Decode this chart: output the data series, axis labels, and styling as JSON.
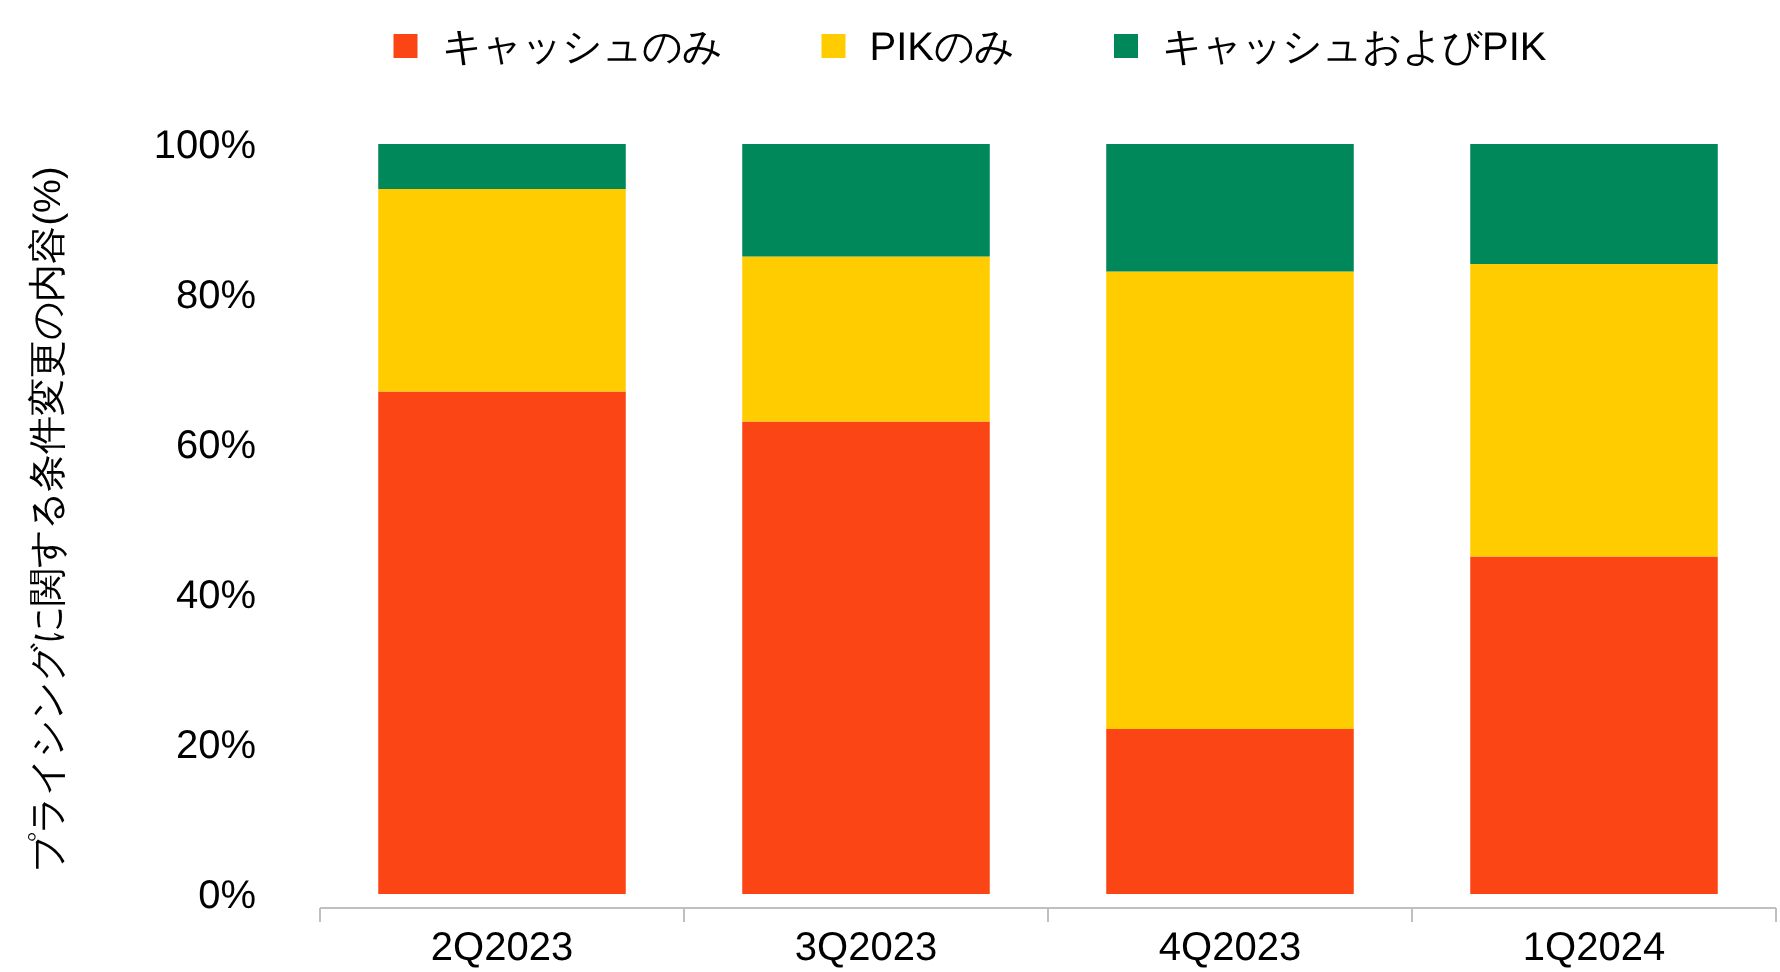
{
  "chart_data": {
    "type": "bar",
    "stacked": true,
    "ylabel": "プライシングに関する条件変更の内容(%)",
    "categories": [
      "2Q2023",
      "3Q2023",
      "4Q2023",
      "1Q2024"
    ],
    "series": [
      {
        "name": "キャッシュのみ",
        "color": "#fc4515",
        "values": [
          67,
          63,
          22,
          45
        ]
      },
      {
        "name": "PIKのみ",
        "color": "#ffcc00",
        "values": [
          27,
          22,
          61,
          39
        ]
      },
      {
        "name": "キャッシュおよびPIK",
        "color": "#00875a",
        "values": [
          6,
          15,
          17,
          16
        ]
      }
    ],
    "ylim": [
      0,
      100
    ],
    "yticks": [
      {
        "value": 0,
        "label": "0%"
      },
      {
        "value": 20,
        "label": "20%"
      },
      {
        "value": 40,
        "label": "40%"
      },
      {
        "value": 60,
        "label": "60%"
      },
      {
        "value": 80,
        "label": "80%"
      },
      {
        "value": 100,
        "label": "100%"
      }
    ],
    "legend": "top"
  }
}
